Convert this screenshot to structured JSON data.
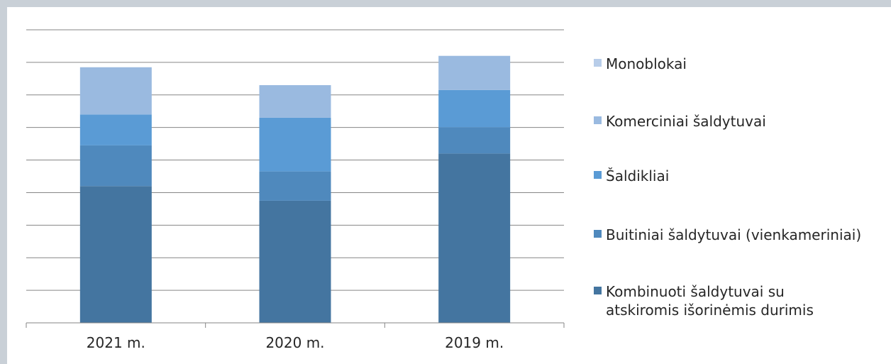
{
  "chart_data": {
    "type": "bar",
    "stacked": true,
    "categories": [
      "2021 m.",
      "2020 m.",
      "2019 m."
    ],
    "series": [
      {
        "name": "Kombinuoti šaldytuvai su atskiromis išorinėmis durimis",
        "values": [
          4.2,
          3.75,
          5.2
        ],
        "color": "#4475a0"
      },
      {
        "name": "Buitiniai šaldytuvai (vienkameriniai)",
        "values": [
          1.25,
          0.9,
          0.8
        ],
        "color": "#4f89bd"
      },
      {
        "name": "Šaldikliai",
        "values": [
          0.95,
          1.65,
          1.15
        ],
        "color": "#5a9bd5"
      },
      {
        "name": "Komerciniai šaldytuvai",
        "values": [
          1.45,
          1.0,
          1.05
        ],
        "color": "#9abae0"
      },
      {
        "name": "Monoblokai",
        "values": [
          0,
          0,
          0
        ],
        "color": "#b8cde9"
      }
    ],
    "ylim": [
      0,
      9
    ],
    "grid": true,
    "legend_position": "right"
  }
}
